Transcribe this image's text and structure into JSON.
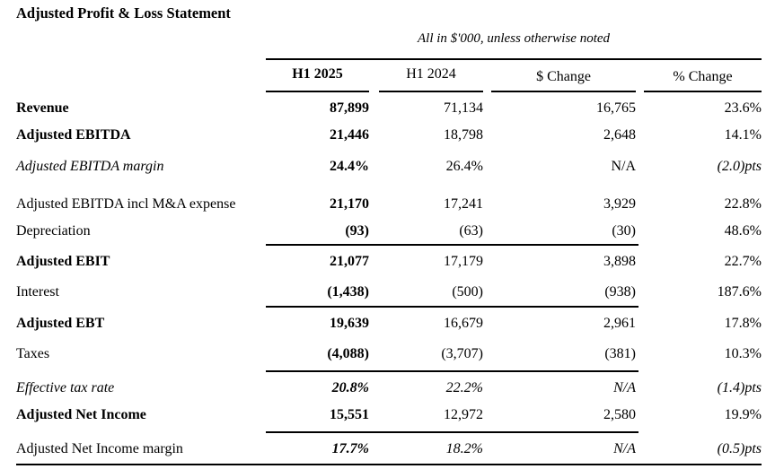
{
  "title": "Adjusted Profit & Loss Statement",
  "table": {
    "note": "All in $'000, unless otherwise noted",
    "columns": [
      "H1 2025",
      "H1 2024",
      "$ Change",
      "% Change"
    ],
    "rows": [
      {
        "label": "Revenue",
        "label_style": "b",
        "values": [
          "87,899",
          "71,134",
          "16,765",
          "23.6%"
        ],
        "value_styles": [
          "b",
          "",
          "",
          ""
        ],
        "rule_above": false
      },
      {
        "label": "Adjusted EBITDA",
        "label_style": "b",
        "values": [
          "21,446",
          "18,798",
          "2,648",
          "14.1%"
        ],
        "value_styles": [
          "b",
          "",
          "",
          ""
        ],
        "rule_above": false
      },
      {
        "label": "Adjusted EBITDA margin",
        "label_style": "i",
        "values": [
          "24.4%",
          "26.4%",
          "N/A",
          "(2.0)pts"
        ],
        "value_styles": [
          "b",
          "",
          "",
          "i"
        ],
        "rule_above": false
      },
      {
        "label": "Adjusted EBITDA incl M&A expense",
        "label_style": "",
        "values": [
          "21,170",
          "17,241",
          "3,929",
          "22.8%"
        ],
        "value_styles": [
          "b",
          "",
          "",
          ""
        ],
        "rule_above": false
      },
      {
        "label": "Depreciation",
        "label_style": "",
        "values": [
          "(93)",
          "(63)",
          "(30)",
          "48.6%"
        ],
        "value_styles": [
          "b",
          "",
          "",
          ""
        ],
        "rule_above": false
      },
      {
        "label": "Adjusted EBIT",
        "label_style": "b",
        "values": [
          "21,077",
          "17,179",
          "3,898",
          "22.7%"
        ],
        "value_styles": [
          "b",
          "",
          "",
          ""
        ],
        "rule_above": true
      },
      {
        "label": "Interest",
        "label_style": "",
        "values": [
          "(1,438)",
          "(500)",
          "(938)",
          "187.6%"
        ],
        "value_styles": [
          "b",
          "",
          "",
          ""
        ],
        "rule_above": false
      },
      {
        "label": "Adjusted EBT",
        "label_style": "b",
        "values": [
          "19,639",
          "16,679",
          "2,961",
          "17.8%"
        ],
        "value_styles": [
          "b",
          "",
          "",
          ""
        ],
        "rule_above": true
      },
      {
        "label": "Taxes",
        "label_style": "",
        "values": [
          "(4,088)",
          "(3,707)",
          "(381)",
          "10.3%"
        ],
        "value_styles": [
          "b",
          "",
          "",
          ""
        ],
        "rule_above": false
      },
      {
        "label": "Effective tax rate",
        "label_style": "i",
        "values": [
          "20.8%",
          "22.2%",
          "N/A",
          "(1.4)pts"
        ],
        "value_styles": [
          "bi",
          "i",
          "i",
          "i"
        ],
        "rule_above": true
      },
      {
        "label": "Adjusted Net Income",
        "label_style": "b",
        "values": [
          "15,551",
          "12,972",
          "2,580",
          "19.9%"
        ],
        "value_styles": [
          "b",
          "",
          "",
          ""
        ],
        "rule_above": false
      },
      {
        "label": "Adjusted Net Income margin",
        "label_style": "",
        "values": [
          "17.7%",
          "18.2%",
          "N/A",
          "(0.5)pts"
        ],
        "value_styles": [
          "bi",
          "i",
          "i",
          "i"
        ],
        "rule_above": true
      }
    ]
  },
  "colors": {
    "text": "#000000",
    "background": "#ffffff",
    "rule": "#000000"
  }
}
